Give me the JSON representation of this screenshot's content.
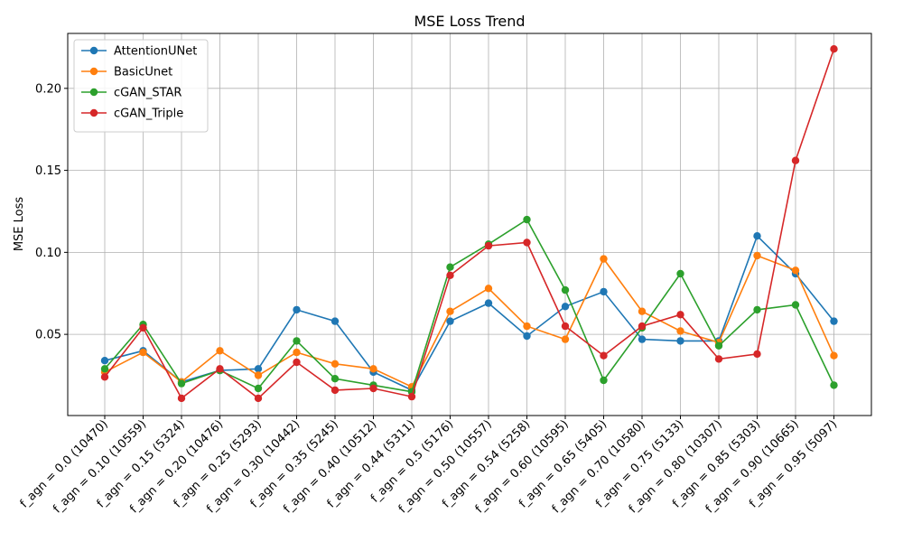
{
  "chart_data": {
    "type": "line",
    "title": "MSE Loss Trend",
    "xlabel": "",
    "ylabel": "MSE Loss",
    "categories": [
      "f_agn = 0.0 (10470)",
      "f_agn = 0.10 (10559)",
      "f_agn = 0.15 (5324)",
      "f_agn = 0.20 (10476)",
      "f_agn = 0.25 (5293)",
      "f_agn = 0.30 (10442)",
      "f_agn = 0.35 (5245)",
      "f_agn = 0.40 (10512)",
      "f_agn = 0.44 (5311)",
      "f_agn = 0.5 (5176)",
      "f_agn = 0.50 (10557)",
      "f_agn = 0.54 (5258)",
      "f_agn = 0.60 (10595)",
      "f_agn = 0.65 (5405)",
      "f_agn = 0.70 (10580)",
      "f_agn = 0.75 (5133)",
      "f_agn = 0.80 (10307)",
      "f_agn = 0.85 (5303)",
      "f_agn = 0.90 (10665)",
      "f_agn = 0.95 (5097)"
    ],
    "yticks": [
      0.05,
      0.1,
      0.15,
      0.2
    ],
    "ytick_labels": [
      "0.05",
      "0.10",
      "0.15",
      "0.20"
    ],
    "ylim": [
      0.0005,
      0.2335
    ],
    "grid": true,
    "legend_position": "top-left",
    "series": [
      {
        "name": "AttentionUNet",
        "color": "#1f77b4",
        "values": [
          0.034,
          0.04,
          0.021,
          0.028,
          0.029,
          0.065,
          0.058,
          0.027,
          0.016,
          0.058,
          0.069,
          0.049,
          0.067,
          0.076,
          0.047,
          0.046,
          0.046,
          0.11,
          0.087,
          0.058
        ]
      },
      {
        "name": "BasicUnet",
        "color": "#ff7f0e",
        "values": [
          0.027,
          0.039,
          0.021,
          0.04,
          0.025,
          0.039,
          0.032,
          0.029,
          0.018,
          0.064,
          0.078,
          0.055,
          0.047,
          0.096,
          0.064,
          0.052,
          0.045,
          0.098,
          0.089,
          0.037
        ]
      },
      {
        "name": "cGAN_STAR",
        "color": "#2ca02c",
        "values": [
          0.029,
          0.056,
          0.02,
          0.028,
          0.017,
          0.046,
          0.023,
          0.019,
          0.015,
          0.091,
          0.105,
          0.12,
          0.077,
          0.022,
          0.054,
          0.087,
          0.043,
          0.065,
          0.068,
          0.019
        ]
      },
      {
        "name": "cGAN_Triple",
        "color": "#d62728",
        "values": [
          0.024,
          0.054,
          0.011,
          0.029,
          0.011,
          0.033,
          0.016,
          0.017,
          0.012,
          0.086,
          0.104,
          0.106,
          0.055,
          0.037,
          0.055,
          0.062,
          0.035,
          0.038,
          0.156,
          0.224
        ]
      }
    ]
  }
}
